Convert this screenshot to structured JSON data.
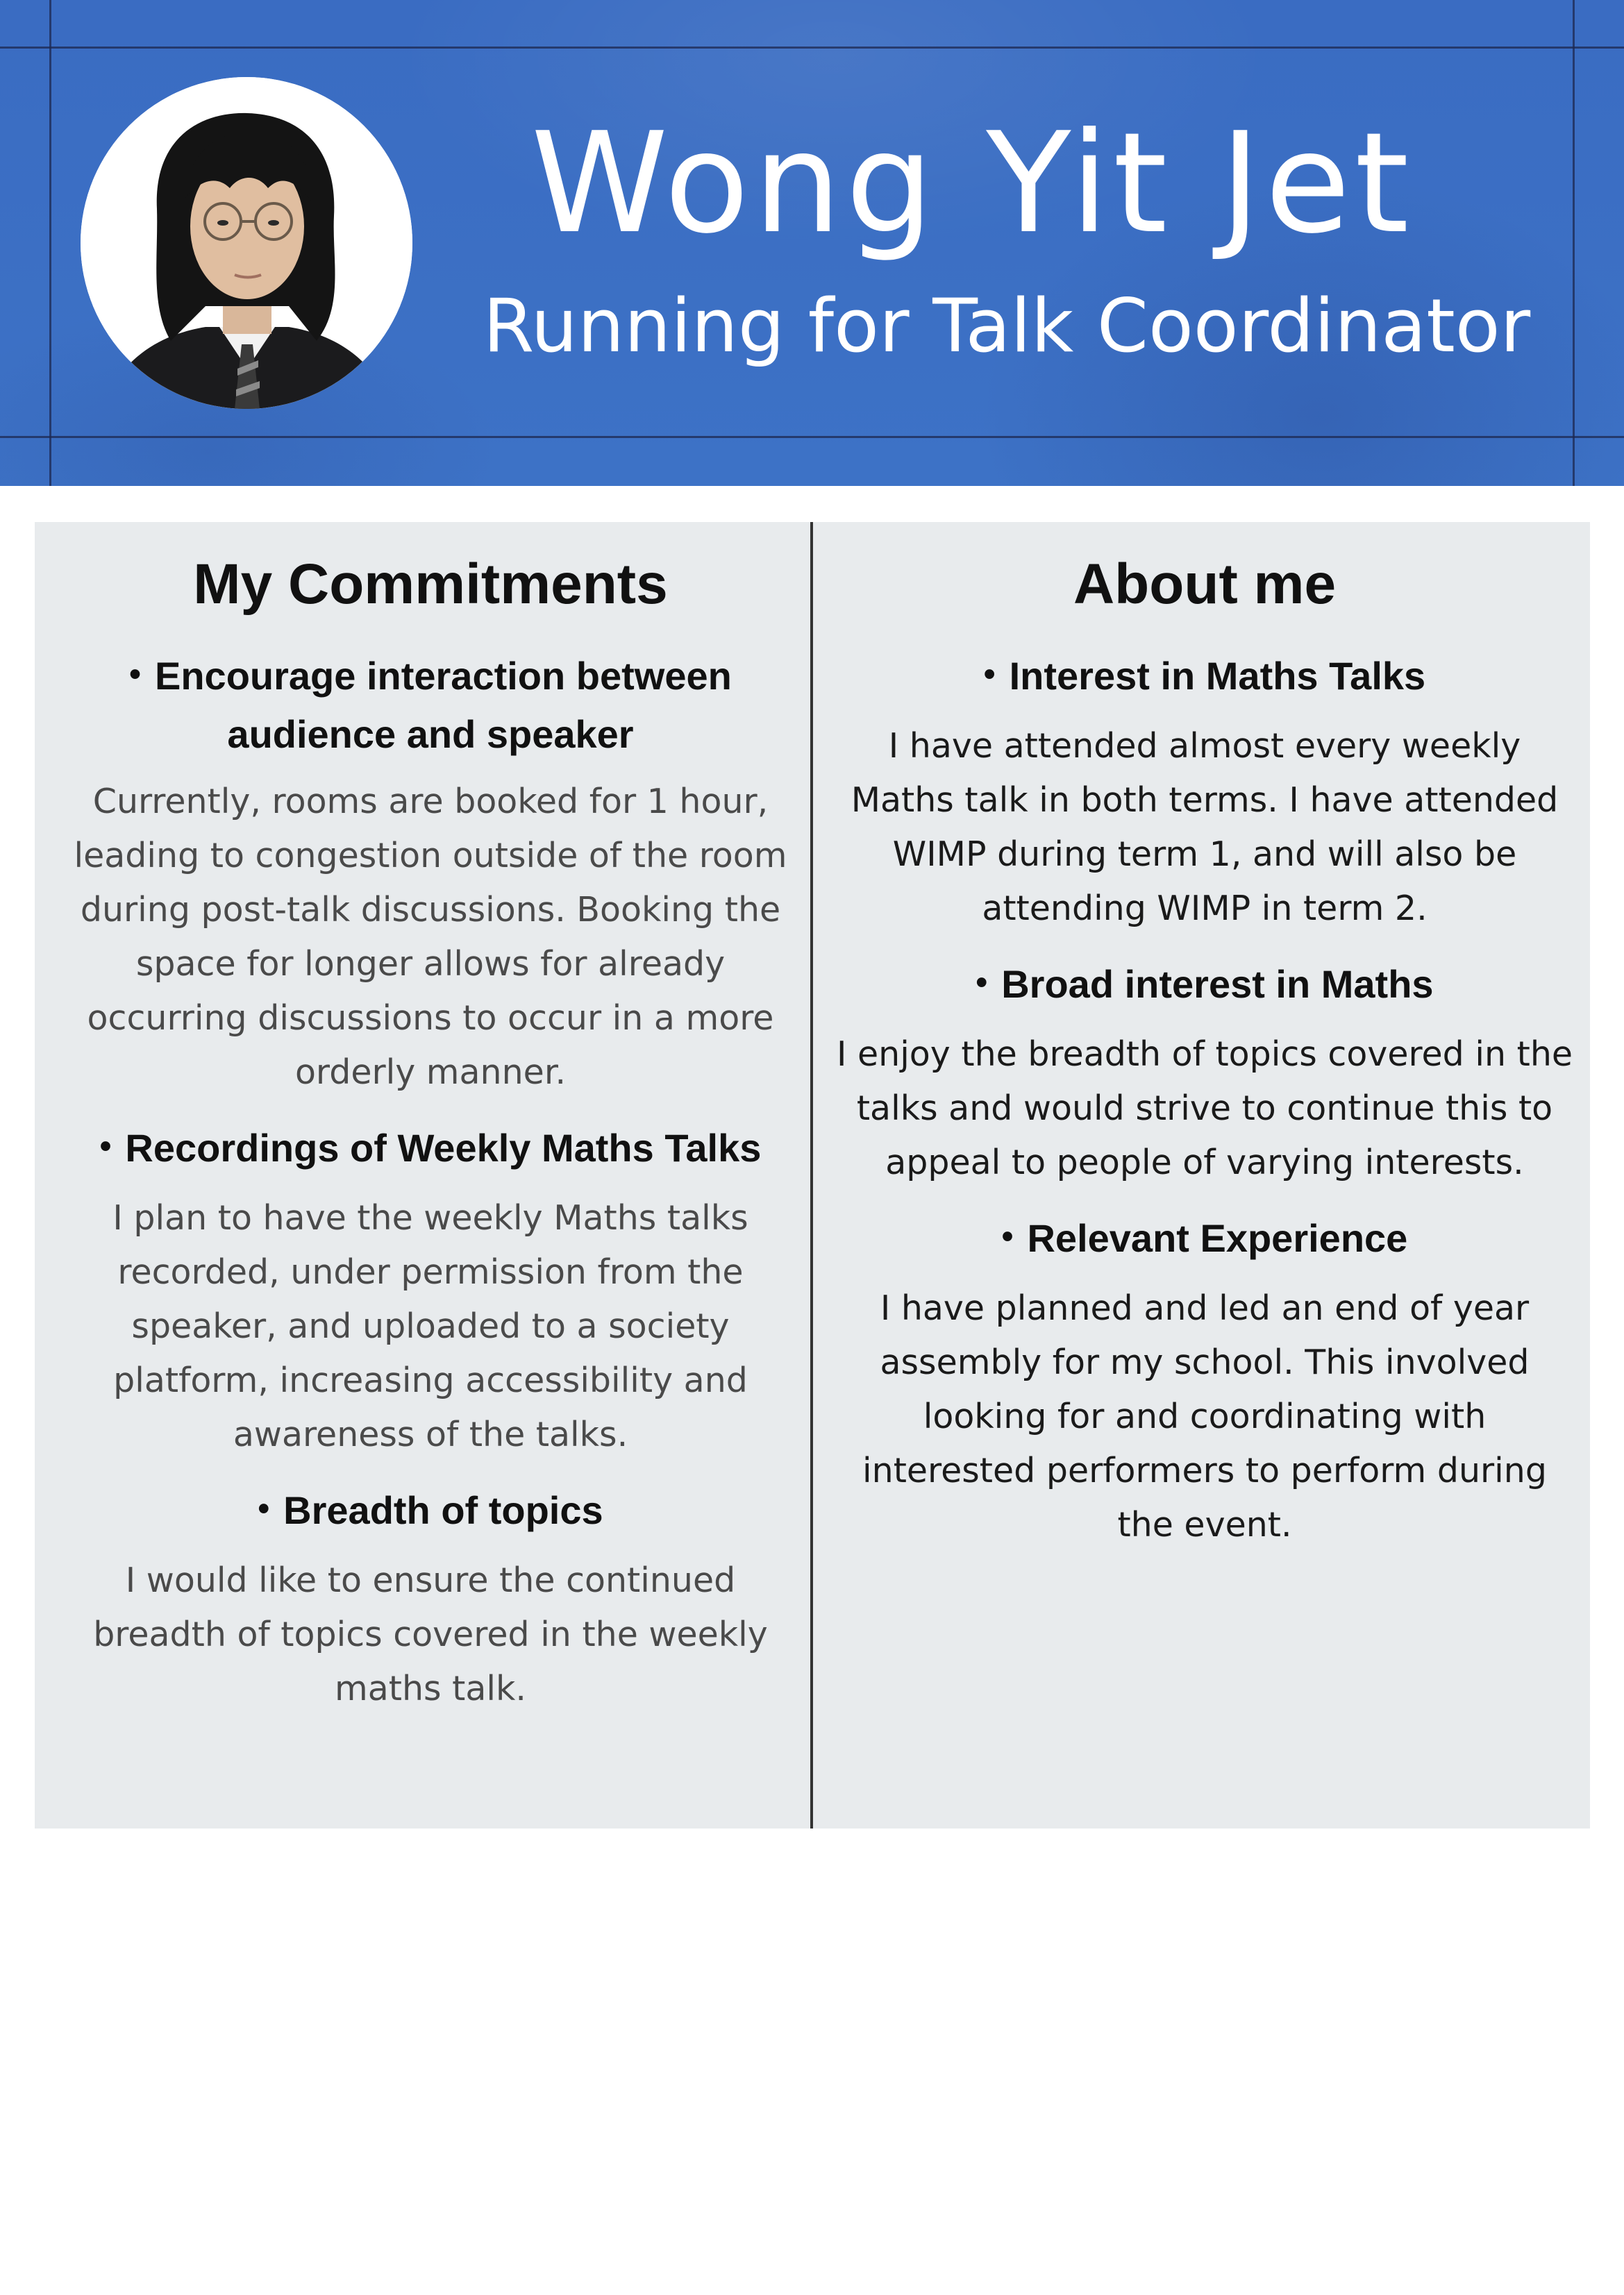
{
  "header": {
    "name": "Wong Yit Jet",
    "role": "Running for Talk Coordinator",
    "background_color": "#3b6fc3",
    "avatar_icon": "portrait-photo"
  },
  "commitments": {
    "title": "My Commitments",
    "items": [
      {
        "heading": "Encourage interaction between audience and speaker",
        "body": "Currently, rooms are booked for 1 hour, leading to congestion outside of the room during post-talk discussions. Booking the space for longer allows for already occurring discussions to occur in a more orderly manner."
      },
      {
        "heading": "Recordings of Weekly Maths Talks",
        "body": "I plan to have the weekly Maths talks recorded, under permission from the speaker, and uploaded to a society platform, increasing accessibility and awareness of the talks."
      },
      {
        "heading": "Breadth of topics",
        "body": "I would like to ensure the continued breadth of topics covered in the weekly maths talk."
      }
    ]
  },
  "about": {
    "title": "About me",
    "items": [
      {
        "heading": "Interest in Maths Talks",
        "body": "I have attended almost every weekly Maths talk in both terms. I have attended WIMP during term 1, and will also be attending WIMP in term 2."
      },
      {
        "heading": "Broad interest in Maths",
        "body": "I enjoy the breadth of topics covered in the talks and would strive to continue this  to appeal to people of varying interests."
      },
      {
        "heading": "Relevant Experience",
        "body": "I have planned and led an end of year assembly for my school. This involved looking for and coordinating with interested performers to perform during the event."
      }
    ]
  },
  "colors": {
    "panel": "#e8ebed",
    "divider": "#333333",
    "heading_text": "#111111",
    "left_body_text": "#4a4a4a"
  }
}
